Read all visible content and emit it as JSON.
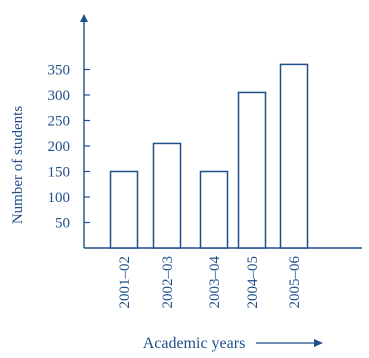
{
  "chart_data": {
    "type": "bar",
    "categories": [
      "2001–02",
      "2002–03",
      "2003–04",
      "2004–05",
      "2005–06"
    ],
    "values": [
      150,
      205,
      150,
      305,
      360
    ],
    "xlabel": "Academic years",
    "ylabel": "Number of students",
    "yticks": [
      50,
      100,
      150,
      200,
      250,
      300,
      350
    ],
    "ylim": [
      0,
      400
    ],
    "grid": false,
    "legend": "none",
    "colors": {
      "bar_fill": "#ffffff",
      "bar_stroke": "#1f4f8a",
      "axis": "#1f4f8a",
      "text": "#1f4f8a"
    }
  }
}
